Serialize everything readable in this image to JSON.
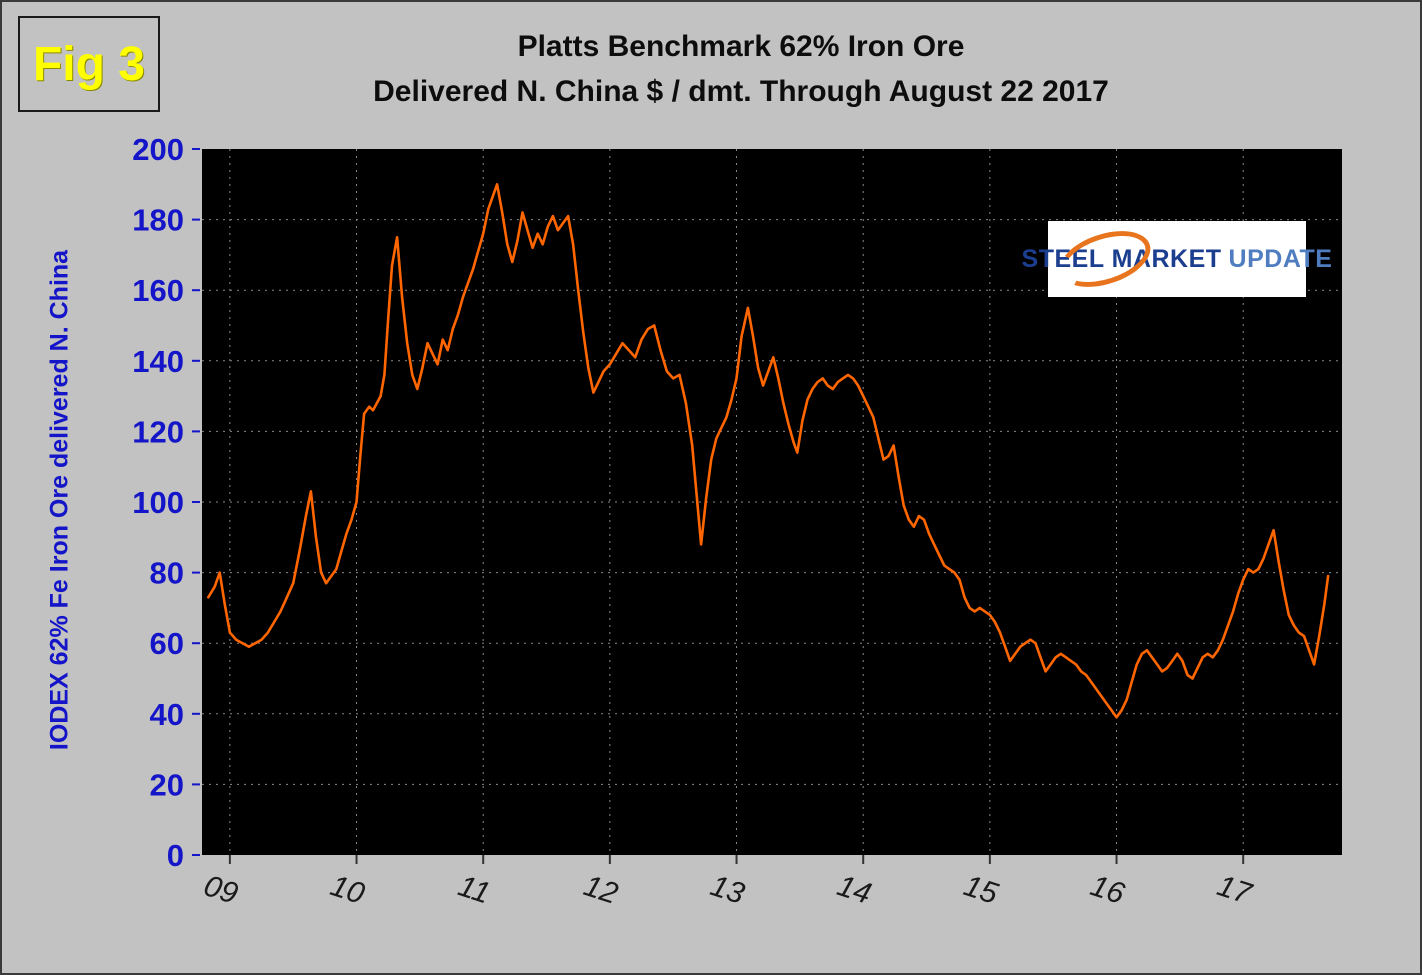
{
  "fig_label": "Fig 3",
  "title_line1": "Platts Benchmark 62% Iron Ore",
  "title_line2": "Delivered N. China $ / dmt. Through August 22 2017",
  "logo": {
    "word1": "STEEL",
    "word2": "MARKET",
    "word3": "UPDATE"
  },
  "colors": {
    "page_bg": "#c2c2c2",
    "plot_bg": "#000000",
    "line": "#ff6600",
    "grid": "#8a8a8a",
    "axis_text": "#1414c8",
    "x_text": "#1a1a1a",
    "title_text": "#0d0d0d",
    "fig_label": "#ffff00",
    "logo_blue": "#1b3e8f",
    "logo_light_blue": "#4f7dc0",
    "logo_orange": "#e8741e",
    "logo_bg": "#ffffff"
  },
  "chart_data": {
    "type": "line",
    "title": "Platts Benchmark 62% Iron Ore Delivered N. China $ / dmt. Through August 22 2017",
    "xlabel": "",
    "ylabel": "IODEX 62% Fe Iron Ore delivered N. China",
    "legend": "none",
    "grid": "dotted",
    "plot_background": "black",
    "xlim": [
      2008.78,
      2017.78
    ],
    "ylim": [
      0,
      200
    ],
    "y_ticks": [
      0,
      20,
      40,
      60,
      80,
      100,
      120,
      140,
      160,
      180,
      200
    ],
    "x_ticks": [
      {
        "value": 2009,
        "label": "09"
      },
      {
        "value": 2010,
        "label": "10"
      },
      {
        "value": 2011,
        "label": "11"
      },
      {
        "value": 2012,
        "label": "12"
      },
      {
        "value": 2013,
        "label": "13"
      },
      {
        "value": 2014,
        "label": "14"
      },
      {
        "value": 2015,
        "label": "15"
      },
      {
        "value": 2016,
        "label": "16"
      },
      {
        "value": 2017,
        "label": "17"
      }
    ],
    "series": [
      {
        "name": "Platts IODEX 62% Fe Iron Ore ($/dmt)",
        "points": [
          [
            2008.83,
            73
          ],
          [
            2008.88,
            76
          ],
          [
            2008.92,
            80
          ],
          [
            2008.96,
            71
          ],
          [
            2009.0,
            63
          ],
          [
            2009.05,
            61
          ],
          [
            2009.1,
            60
          ],
          [
            2009.15,
            59
          ],
          [
            2009.2,
            60
          ],
          [
            2009.25,
            61
          ],
          [
            2009.3,
            63
          ],
          [
            2009.35,
            66
          ],
          [
            2009.4,
            69
          ],
          [
            2009.45,
            73
          ],
          [
            2009.5,
            77
          ],
          [
            2009.55,
            86
          ],
          [
            2009.6,
            96
          ],
          [
            2009.64,
            103
          ],
          [
            2009.68,
            90
          ],
          [
            2009.72,
            80
          ],
          [
            2009.76,
            77
          ],
          [
            2009.8,
            79
          ],
          [
            2009.84,
            81
          ],
          [
            2009.88,
            86
          ],
          [
            2009.92,
            91
          ],
          [
            2009.96,
            95
          ],
          [
            2010.0,
            100
          ],
          [
            2010.03,
            113
          ],
          [
            2010.06,
            125
          ],
          [
            2010.1,
            127
          ],
          [
            2010.13,
            126
          ],
          [
            2010.16,
            128
          ],
          [
            2010.19,
            130
          ],
          [
            2010.22,
            136
          ],
          [
            2010.25,
            152
          ],
          [
            2010.28,
            167
          ],
          [
            2010.32,
            175
          ],
          [
            2010.36,
            158
          ],
          [
            2010.4,
            145
          ],
          [
            2010.44,
            136
          ],
          [
            2010.48,
            132
          ],
          [
            2010.52,
            138
          ],
          [
            2010.56,
            145
          ],
          [
            2010.6,
            142
          ],
          [
            2010.64,
            139
          ],
          [
            2010.68,
            146
          ],
          [
            2010.72,
            143
          ],
          [
            2010.76,
            149
          ],
          [
            2010.8,
            153
          ],
          [
            2010.84,
            158
          ],
          [
            2010.88,
            162
          ],
          [
            2010.92,
            166
          ],
          [
            2010.96,
            171
          ],
          [
            2011.0,
            176
          ],
          [
            2011.04,
            183
          ],
          [
            2011.08,
            187
          ],
          [
            2011.11,
            190
          ],
          [
            2011.15,
            182
          ],
          [
            2011.19,
            173
          ],
          [
            2011.23,
            168
          ],
          [
            2011.27,
            174
          ],
          [
            2011.31,
            182
          ],
          [
            2011.35,
            177
          ],
          [
            2011.39,
            172
          ],
          [
            2011.43,
            176
          ],
          [
            2011.47,
            173
          ],
          [
            2011.51,
            178
          ],
          [
            2011.55,
            181
          ],
          [
            2011.59,
            177
          ],
          [
            2011.63,
            179
          ],
          [
            2011.67,
            181
          ],
          [
            2011.71,
            173
          ],
          [
            2011.75,
            160
          ],
          [
            2011.79,
            148
          ],
          [
            2011.83,
            138
          ],
          [
            2011.87,
            131
          ],
          [
            2011.91,
            134
          ],
          [
            2011.95,
            137
          ],
          [
            2012.0,
            139
          ],
          [
            2012.05,
            142
          ],
          [
            2012.1,
            145
          ],
          [
            2012.15,
            143
          ],
          [
            2012.2,
            141
          ],
          [
            2012.25,
            146
          ],
          [
            2012.3,
            149
          ],
          [
            2012.35,
            150
          ],
          [
            2012.4,
            143
          ],
          [
            2012.45,
            137
          ],
          [
            2012.5,
            135
          ],
          [
            2012.55,
            136
          ],
          [
            2012.6,
            128
          ],
          [
            2012.65,
            116
          ],
          [
            2012.68,
            104
          ],
          [
            2012.72,
            88
          ],
          [
            2012.76,
            101
          ],
          [
            2012.8,
            112
          ],
          [
            2012.84,
            118
          ],
          [
            2012.88,
            121
          ],
          [
            2012.92,
            124
          ],
          [
            2012.96,
            129
          ],
          [
            2013.0,
            135
          ],
          [
            2013.04,
            147
          ],
          [
            2013.09,
            155
          ],
          [
            2013.13,
            147
          ],
          [
            2013.17,
            138
          ],
          [
            2013.21,
            133
          ],
          [
            2013.25,
            137
          ],
          [
            2013.29,
            141
          ],
          [
            2013.33,
            135
          ],
          [
            2013.37,
            128
          ],
          [
            2013.41,
            122
          ],
          [
            2013.45,
            117
          ],
          [
            2013.48,
            114
          ],
          [
            2013.52,
            123
          ],
          [
            2013.56,
            129
          ],
          [
            2013.6,
            132
          ],
          [
            2013.64,
            134
          ],
          [
            2013.68,
            135
          ],
          [
            2013.72,
            133
          ],
          [
            2013.76,
            132
          ],
          [
            2013.8,
            134
          ],
          [
            2013.84,
            135
          ],
          [
            2013.88,
            136
          ],
          [
            2013.92,
            135
          ],
          [
            2013.96,
            133
          ],
          [
            2014.0,
            130
          ],
          [
            2014.04,
            127
          ],
          [
            2014.08,
            124
          ],
          [
            2014.12,
            118
          ],
          [
            2014.16,
            112
          ],
          [
            2014.2,
            113
          ],
          [
            2014.24,
            116
          ],
          [
            2014.28,
            107
          ],
          [
            2014.32,
            99
          ],
          [
            2014.36,
            95
          ],
          [
            2014.4,
            93
          ],
          [
            2014.44,
            96
          ],
          [
            2014.48,
            95
          ],
          [
            2014.52,
            91
          ],
          [
            2014.56,
            88
          ],
          [
            2014.6,
            85
          ],
          [
            2014.64,
            82
          ],
          [
            2014.68,
            81
          ],
          [
            2014.72,
            80
          ],
          [
            2014.76,
            78
          ],
          [
            2014.8,
            73
          ],
          [
            2014.84,
            70
          ],
          [
            2014.88,
            69
          ],
          [
            2014.92,
            70
          ],
          [
            2014.96,
            69
          ],
          [
            2015.0,
            68
          ],
          [
            2015.04,
            66
          ],
          [
            2015.08,
            63
          ],
          [
            2015.12,
            59
          ],
          [
            2015.16,
            55
          ],
          [
            2015.2,
            57
          ],
          [
            2015.24,
            59
          ],
          [
            2015.28,
            60
          ],
          [
            2015.32,
            61
          ],
          [
            2015.36,
            60
          ],
          [
            2015.4,
            56
          ],
          [
            2015.44,
            52
          ],
          [
            2015.48,
            54
          ],
          [
            2015.52,
            56
          ],
          [
            2015.56,
            57
          ],
          [
            2015.6,
            56
          ],
          [
            2015.64,
            55
          ],
          [
            2015.68,
            54
          ],
          [
            2015.72,
            52
          ],
          [
            2015.76,
            51
          ],
          [
            2015.8,
            49
          ],
          [
            2015.84,
            47
          ],
          [
            2015.88,
            45
          ],
          [
            2015.92,
            43
          ],
          [
            2015.96,
            41
          ],
          [
            2016.0,
            39
          ],
          [
            2016.04,
            41
          ],
          [
            2016.08,
            44
          ],
          [
            2016.12,
            49
          ],
          [
            2016.16,
            54
          ],
          [
            2016.2,
            57
          ],
          [
            2016.24,
            58
          ],
          [
            2016.28,
            56
          ],
          [
            2016.32,
            54
          ],
          [
            2016.36,
            52
          ],
          [
            2016.4,
            53
          ],
          [
            2016.44,
            55
          ],
          [
            2016.48,
            57
          ],
          [
            2016.52,
            55
          ],
          [
            2016.56,
            51
          ],
          [
            2016.6,
            50
          ],
          [
            2016.64,
            53
          ],
          [
            2016.68,
            56
          ],
          [
            2016.72,
            57
          ],
          [
            2016.76,
            56
          ],
          [
            2016.8,
            58
          ],
          [
            2016.84,
            61
          ],
          [
            2016.88,
            65
          ],
          [
            2016.92,
            69
          ],
          [
            2016.96,
            74
          ],
          [
            2017.0,
            78
          ],
          [
            2017.04,
            81
          ],
          [
            2017.08,
            80
          ],
          [
            2017.12,
            81
          ],
          [
            2017.16,
            84
          ],
          [
            2017.2,
            88
          ],
          [
            2017.24,
            92
          ],
          [
            2017.28,
            83
          ],
          [
            2017.32,
            75
          ],
          [
            2017.36,
            68
          ],
          [
            2017.4,
            65
          ],
          [
            2017.44,
            63
          ],
          [
            2017.48,
            62
          ],
          [
            2017.52,
            58
          ],
          [
            2017.56,
            54
          ],
          [
            2017.6,
            62
          ],
          [
            2017.64,
            71
          ],
          [
            2017.67,
            79
          ]
        ]
      }
    ]
  }
}
